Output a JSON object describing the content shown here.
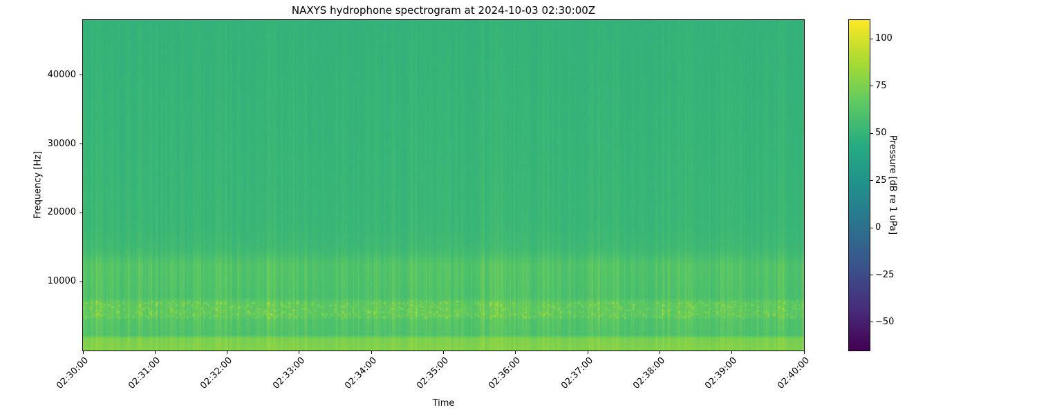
{
  "chart_data": {
    "type": "heatmap",
    "title": "NAXYS hydrophone spectrogram at 2024-10-03 02:30:00Z",
    "xlabel": "Time",
    "ylabel": "Frequency [Hz]",
    "x_ticks": [
      "02:30:00",
      "02:31:00",
      "02:32:00",
      "02:33:00",
      "02:34:00",
      "02:35:00",
      "02:36:00",
      "02:37:00",
      "02:38:00",
      "02:39:00",
      "02:40:00"
    ],
    "x_range": {
      "start": "02:30:00",
      "end": "02:40:00",
      "duration_s": 600
    },
    "y_ticks": [
      {
        "value": 10000,
        "label": "10000"
      },
      {
        "value": 20000,
        "label": "20000"
      },
      {
        "value": 30000,
        "label": "30000"
      },
      {
        "value": 40000,
        "label": "40000"
      }
    ],
    "y_range_hz": [
      0,
      48000
    ],
    "colorbar": {
      "label": "Pressure [dB re 1 uPa]",
      "colormap": "viridis",
      "vmin": -65,
      "vmax": 110,
      "ticks": [
        {
          "value": 100,
          "label": "100"
        },
        {
          "value": 75,
          "label": "75"
        },
        {
          "value": 50,
          "label": "50"
        },
        {
          "value": 25,
          "label": "25"
        },
        {
          "value": 0,
          "label": "0"
        },
        {
          "value": -25,
          "label": "−25"
        },
        {
          "value": -50,
          "label": "−50"
        }
      ],
      "colormap_stops": [
        "#440154",
        "#472d7b",
        "#3b528b",
        "#2c728e",
        "#21918c",
        "#27ad81",
        "#5ec962",
        "#aadc32",
        "#fde725"
      ]
    },
    "summary_levels_db": {
      "background_high_freq": 49,
      "low_band_0_2khz": 73,
      "tonal_dot_band_5_7khz": 62,
      "stripe_peaks_8_13khz": 75
    },
    "render_model": {
      "seed": 42,
      "duration_s": 600,
      "base_db_profile": [
        [
          0,
          74
        ],
        [
          1800,
          71
        ],
        [
          2300,
          57
        ],
        [
          4500,
          57
        ],
        [
          5000,
          61
        ],
        [
          7000,
          61
        ],
        [
          7800,
          55
        ],
        [
          9500,
          56
        ],
        [
          12500,
          57
        ],
        [
          14500,
          52
        ],
        [
          18000,
          50
        ],
        [
          30000,
          49
        ],
        [
          48000,
          48
        ]
      ],
      "stripe_gain_profile": [
        [
          0,
          5
        ],
        [
          2000,
          6
        ],
        [
          4500,
          9
        ],
        [
          8000,
          8
        ],
        [
          12500,
          8
        ],
        [
          15000,
          4
        ],
        [
          30000,
          3
        ],
        [
          48000,
          2
        ]
      ],
      "dot_band_hz": [
        4700,
        7300
      ]
    }
  }
}
